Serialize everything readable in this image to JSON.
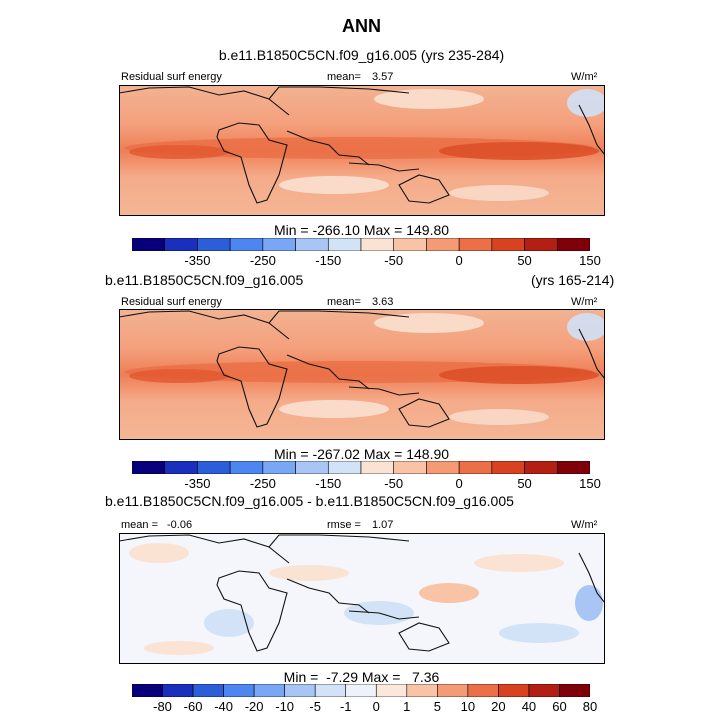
{
  "figure": {
    "title": "ANN"
  },
  "chart_data": [
    {
      "type": "heatmap",
      "case": "b.e11.B1850C5CN.f09_g16.005 (yrs 235-284)",
      "left_label": "Residual surf energy",
      "mean_label": "mean=",
      "mean_value": "3.57",
      "units": "W/m²",
      "minmax": "Min = -266.10 Max = 149.80",
      "min": -266.1,
      "max": 149.8,
      "colorbar_ticks": [
        "-350",
        "-250",
        "-150",
        "-50",
        "0",
        "50",
        "150"
      ],
      "colorbar_colors": [
        "#08007a",
        "#1b2fbe",
        "#2d5ed9",
        "#4d86f0",
        "#7aa7f5",
        "#a8c5f5",
        "#d2e3f7",
        "#fbe3d4",
        "#f9c3a6",
        "#f49a75",
        "#ec6f47",
        "#d84220",
        "#b31f12",
        "#80000a"
      ]
    },
    {
      "type": "heatmap",
      "case": "b.e11.B1850C5CN.f09_g16.005",
      "years": "(yrs 165-214)",
      "left_label": "Residual surf energy",
      "mean_label": "mean=",
      "mean_value": "3.63",
      "units": "W/m²",
      "minmax": "Min = -267.02 Max = 148.90",
      "min": -267.02,
      "max": 148.9,
      "colorbar_ticks": [
        "-350",
        "-250",
        "-150",
        "-50",
        "0",
        "50",
        "150"
      ],
      "colorbar_colors": [
        "#08007a",
        "#1b2fbe",
        "#2d5ed9",
        "#4d86f0",
        "#7aa7f5",
        "#a8c5f5",
        "#d2e3f7",
        "#fbe3d4",
        "#f9c3a6",
        "#f49a75",
        "#ec6f47",
        "#d84220",
        "#b31f12",
        "#80000a"
      ]
    },
    {
      "type": "heatmap",
      "case": "b.e11.B1850C5CN.f09_g16.005 - b.e11.B1850C5CN.f09_g16.005",
      "mean_label": "mean =",
      "mean_value": "-0.06",
      "rmse_label": "rmse =",
      "rmse_value": "1.07",
      "units": "W/m²",
      "minmax": "Min =  -7.29 Max =   7.36",
      "min": -7.29,
      "max": 7.36,
      "colorbar_ticks": [
        "-80",
        "-60",
        "-40",
        "-20",
        "-10",
        "-5",
        "-1",
        "0",
        "1",
        "5",
        "10",
        "20",
        "40",
        "60",
        "80"
      ],
      "colorbar_colors": [
        "#08007a",
        "#1b2fbe",
        "#2d5ed9",
        "#4d86f0",
        "#7aa7f5",
        "#a8c5f5",
        "#d2e3f7",
        "#eef3fb",
        "#fbe8dc",
        "#f9c3a6",
        "#f49a75",
        "#ec6f47",
        "#d84220",
        "#b31f12",
        "#80000a"
      ]
    }
  ]
}
